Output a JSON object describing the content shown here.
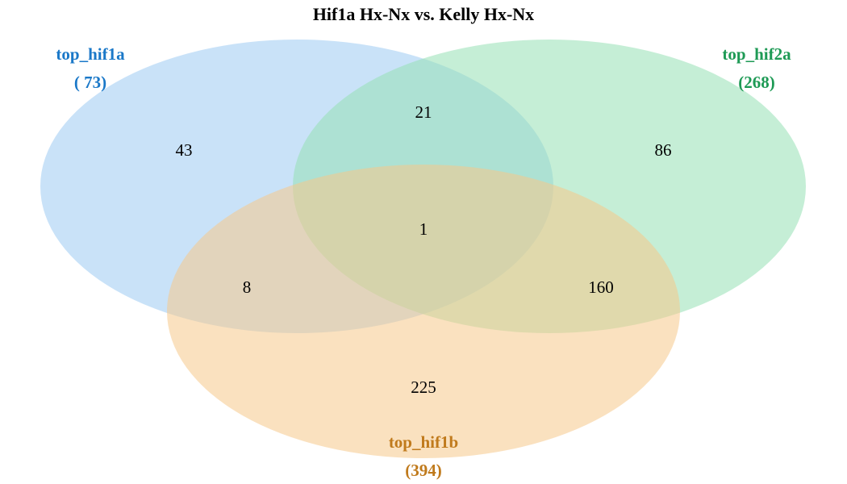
{
  "title": "Hif1a Hx-Nx vs. Kelly Hx-Nx",
  "sets": [
    {
      "id": "a",
      "name": "top_hif1a",
      "total": "( 73)",
      "color": "#1a78c8",
      "fill": "#9dcbf3"
    },
    {
      "id": "b",
      "name": "top_hif2a",
      "total": "(268)",
      "color": "#1e9a55",
      "fill": "#95e0b4"
    },
    {
      "id": "c",
      "name": "top_hif1b",
      "total": "(394)",
      "color": "#c07a1c",
      "fill": "#f5c98a"
    }
  ],
  "regions": {
    "a_only": "43",
    "b_only": "86",
    "c_only": "225",
    "ab": "21",
    "ac": "8",
    "bc": "160",
    "abc": "1"
  }
}
